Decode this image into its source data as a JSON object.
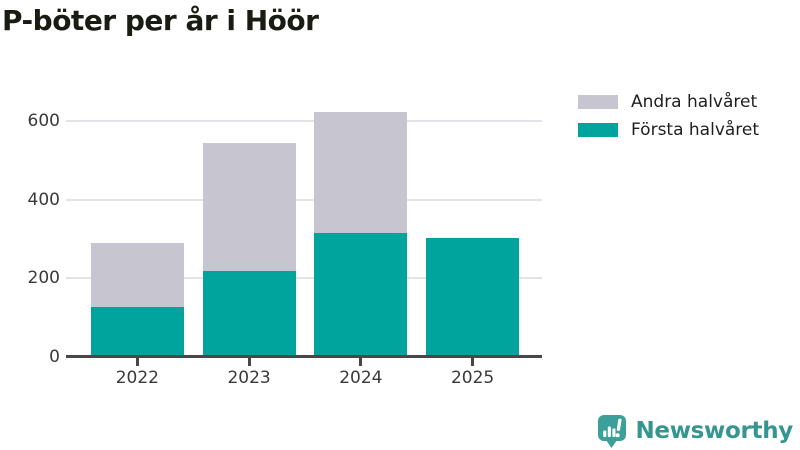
{
  "header": {
    "title": "P-böter per år i Höör"
  },
  "legend": {
    "items": [
      {
        "label": "Andra halvåret",
        "color": "#c7c5d0"
      },
      {
        "label": "Första halvåret",
        "color": "#00a49c"
      }
    ]
  },
  "chart_data": {
    "type": "bar",
    "stacked": true,
    "title": "P-böter per år i Höör",
    "categories": [
      "2022",
      "2023",
      "2024",
      "2025"
    ],
    "series": [
      {
        "name": "Första halvåret",
        "color": "#00a49c",
        "values": [
          127,
          218,
          314,
          302
        ]
      },
      {
        "name": "Andra halvåret",
        "color": "#c7c5d0",
        "values": [
          162,
          327,
          309,
          0
        ]
      }
    ],
    "totals": [
      289,
      545,
      623,
      302
    ],
    "xlabel": "",
    "ylabel": "",
    "yticks": [
      0,
      200,
      400,
      600
    ],
    "ylim": [
      0,
      640
    ],
    "grid": true,
    "legend_position": "top-right",
    "legend_order": [
      "Andra halvåret",
      "Första halvåret"
    ]
  },
  "colors": {
    "first_half": "#00a49c",
    "second_half": "#c7c5d0",
    "gridline": "#e4e3e8",
    "axis": "#474747"
  },
  "logo": {
    "text": "Newsworthy",
    "icon": "newsworthy-bar-chart-bubble-icon",
    "text_color": "#35968f",
    "icon_color": "#3aa099"
  }
}
